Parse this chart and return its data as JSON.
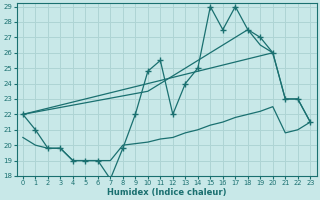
{
  "xlabel": "Humidex (Indice chaleur)",
  "xlim": [
    -0.5,
    23.5
  ],
  "ylim": [
    18,
    29.2
  ],
  "yticks": [
    18,
    19,
    20,
    21,
    22,
    23,
    24,
    25,
    26,
    27,
    28,
    29
  ],
  "xticks": [
    0,
    1,
    2,
    3,
    4,
    5,
    6,
    7,
    8,
    9,
    10,
    11,
    12,
    13,
    14,
    15,
    16,
    17,
    18,
    19,
    20,
    21,
    22,
    23
  ],
  "bg_color": "#c8e8e8",
  "line_color": "#1a7070",
  "grid_color": "#aed4d4",
  "line1_x": [
    0,
    1,
    2,
    3,
    4,
    5,
    6,
    7,
    8,
    9,
    10,
    11,
    12,
    13,
    14,
    15,
    16,
    17,
    18,
    19,
    20,
    21,
    22,
    23
  ],
  "line1_y": [
    22.0,
    21.0,
    19.8,
    19.8,
    19.0,
    19.0,
    19.0,
    17.8,
    19.8,
    22.0,
    24.8,
    25.5,
    22.0,
    24.0,
    25.0,
    29.0,
    27.5,
    29.0,
    27.5,
    27.0,
    26.0,
    23.0,
    23.0,
    21.5
  ],
  "line2_x": [
    0,
    10,
    11,
    12,
    13,
    14,
    15,
    16,
    17,
    18,
    19,
    20,
    21,
    22,
    23
  ],
  "line2_y": [
    22.0,
    23.5,
    24.0,
    24.5,
    25.0,
    25.5,
    26.0,
    26.5,
    27.0,
    27.5,
    26.5,
    26.0,
    23.0,
    23.0,
    21.5
  ],
  "line3_x": [
    0,
    1,
    2,
    3,
    4,
    5,
    6,
    7,
    8,
    9,
    10,
    11,
    12,
    13,
    14,
    15,
    16,
    17,
    18,
    19,
    20,
    21,
    22,
    23
  ],
  "line3_y": [
    20.5,
    20.0,
    19.8,
    19.8,
    19.0,
    19.0,
    19.0,
    19.0,
    20.0,
    20.1,
    20.2,
    20.4,
    20.5,
    20.8,
    21.0,
    21.3,
    21.5,
    21.8,
    22.0,
    22.2,
    22.5,
    20.8,
    21.0,
    21.5
  ],
  "line4_x": [
    0,
    20
  ],
  "line4_y": [
    22.0,
    26.0
  ]
}
